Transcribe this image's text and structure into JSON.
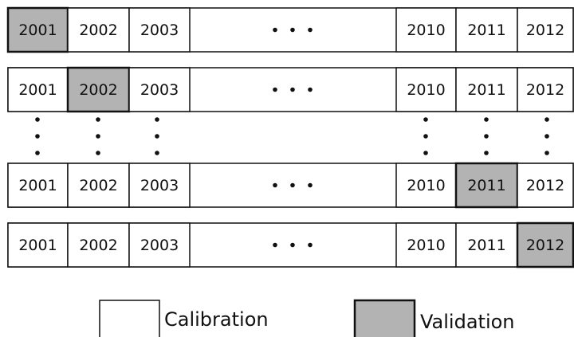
{
  "rows": [
    {
      "cells": [
        "2001",
        "2002",
        "2003",
        "2010",
        "2011",
        "2012"
      ]
    },
    {
      "cells": [
        "2001",
        "2002",
        "2003",
        "2010",
        "2011",
        "2012"
      ]
    },
    {
      "cells": [
        "2001",
        "2002",
        "2003",
        "2010",
        "2011",
        "2012"
      ]
    },
    {
      "cells": [
        "2001",
        "2002",
        "2003",
        "2010",
        "2011",
        "2012"
      ]
    }
  ],
  "legend": {
    "calibration": "Calibration",
    "validation": "Validation"
  }
}
